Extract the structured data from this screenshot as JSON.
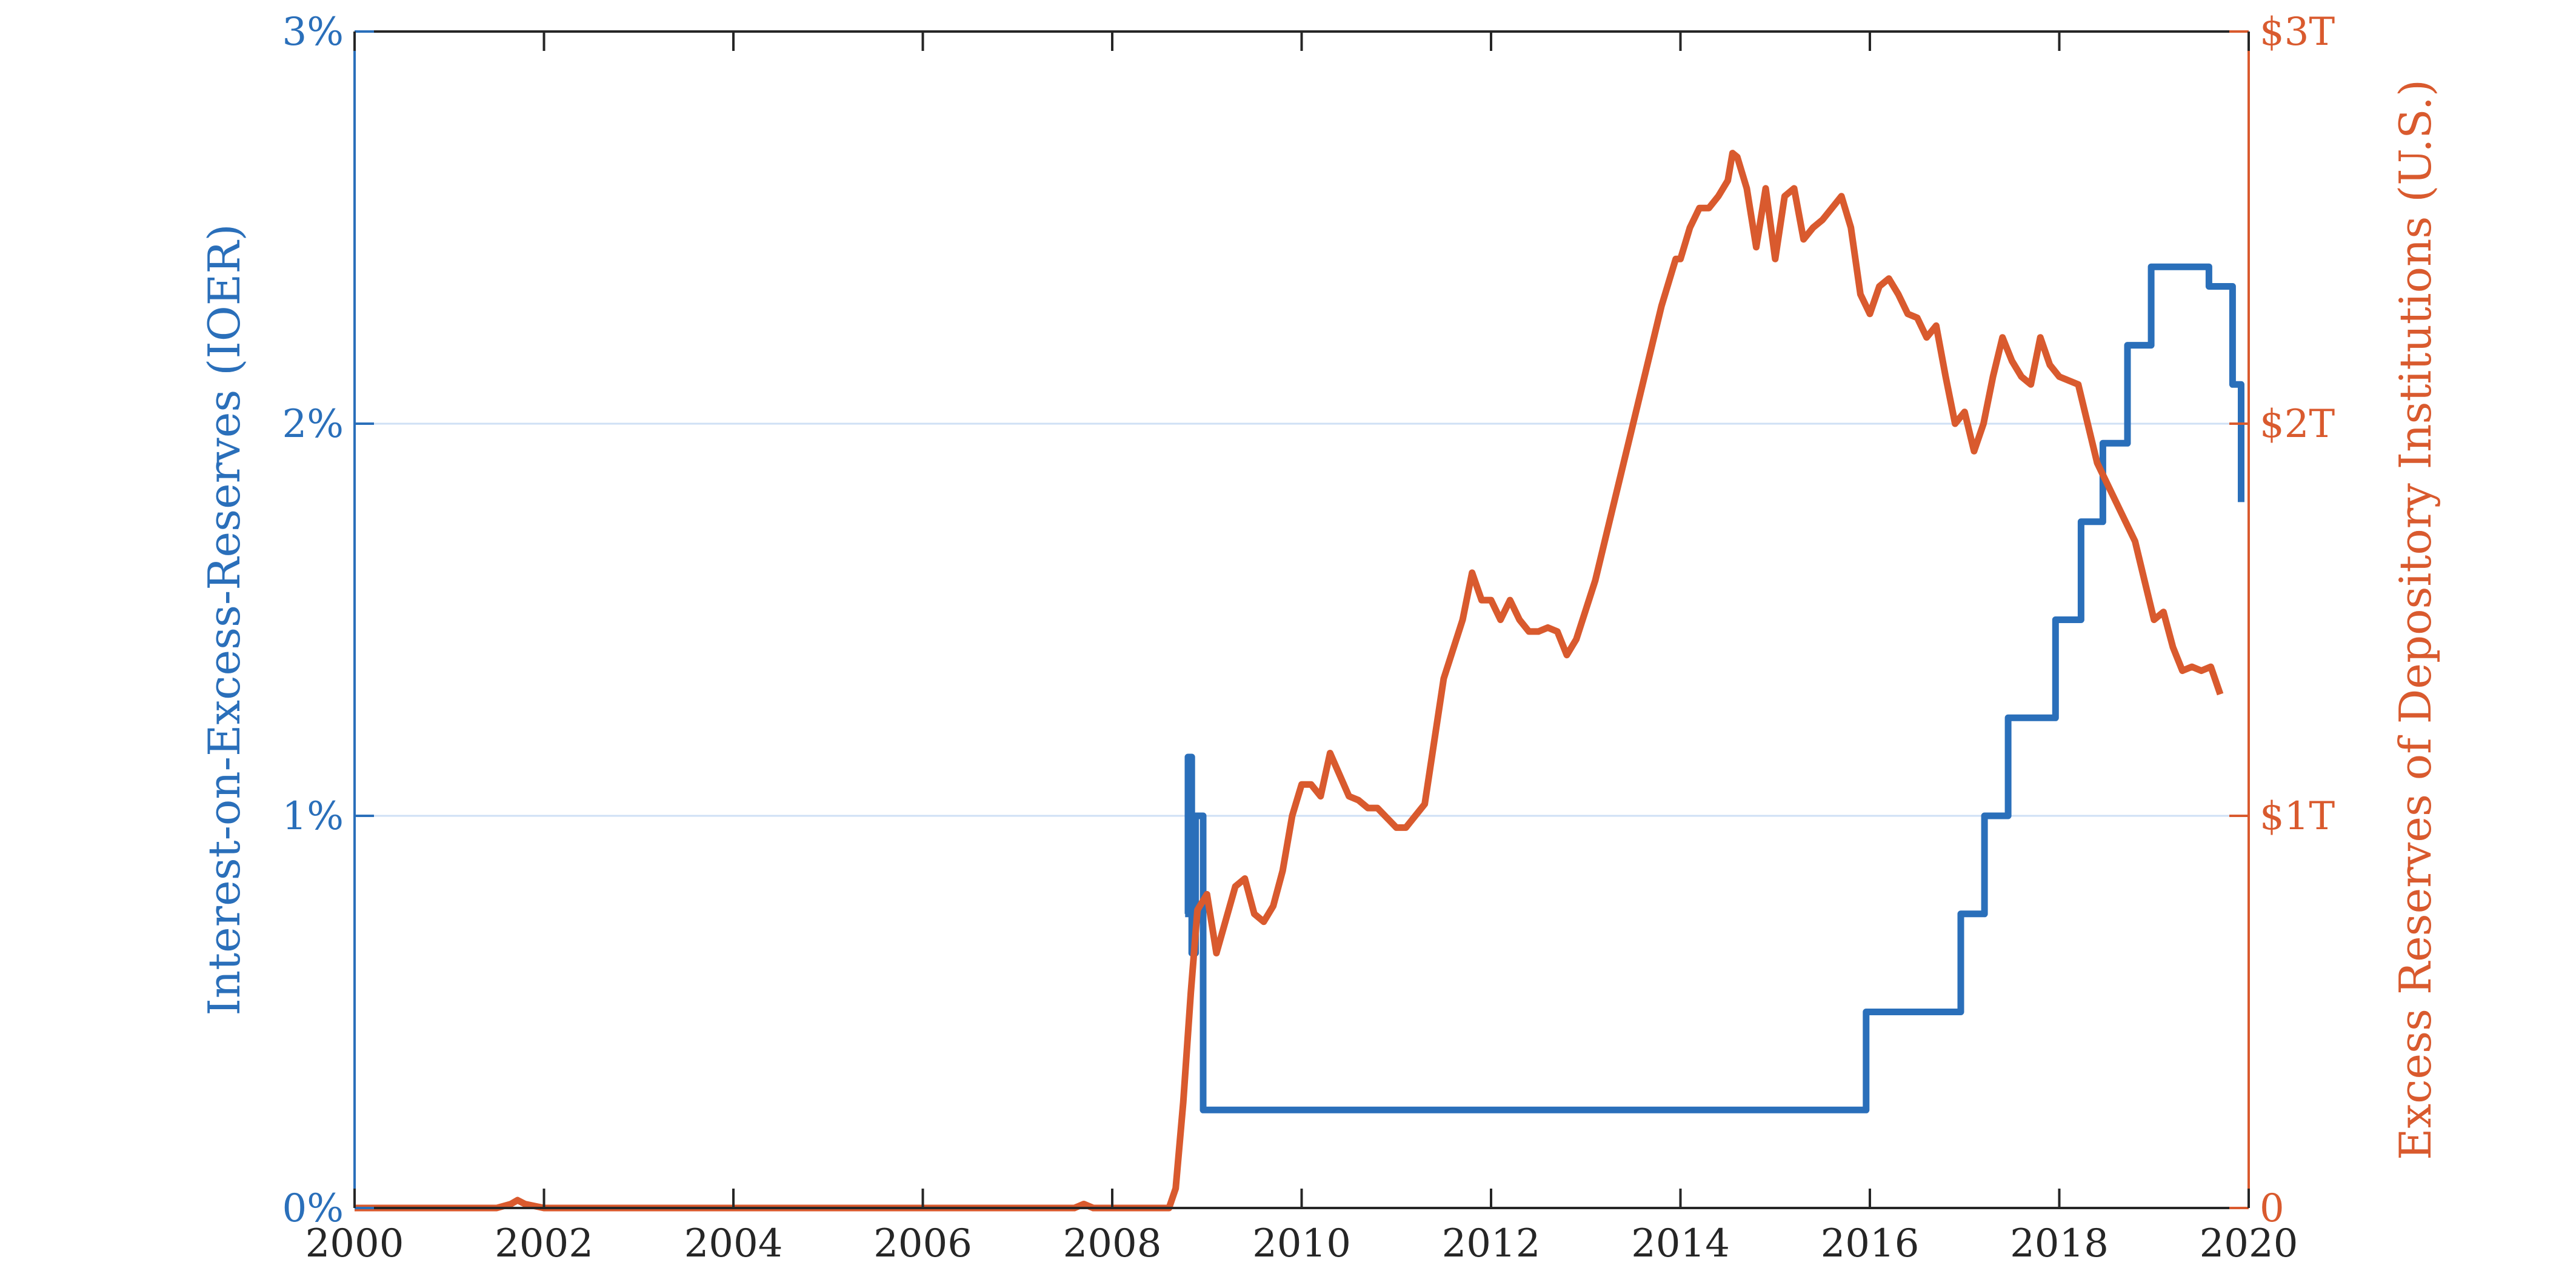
{
  "chart_data": {
    "type": "line",
    "xlabel": "",
    "x_ticks": [
      "2000",
      "2002",
      "2004",
      "2006",
      "2008",
      "2010",
      "2012",
      "2014",
      "2016",
      "2018",
      "2020"
    ],
    "xlim": [
      2000,
      2020
    ],
    "grid": "horizontal",
    "y_left": {
      "label": "Interest-on-Excess-Reserves (IOER)",
      "lim": [
        0,
        3
      ],
      "ticks": [
        "0%",
        "1%",
        "2%",
        "3%"
      ],
      "color": "#2a6fba"
    },
    "y_right": {
      "label": "Excess Reserves of Depository Institutions (U.S.)",
      "lim": [
        0,
        3
      ],
      "ticks": [
        "0",
        "$1T",
        "$2T",
        "$3T"
      ],
      "color": "#d95a2e"
    },
    "series": [
      {
        "key": "ioer",
        "axis": "left",
        "color": "#2a6fba",
        "step": true,
        "x": [
          2008.77,
          2008.8,
          2008.84,
          2008.88,
          2008.96,
          2009.0,
          2015.96,
          2016.96,
          2017.21,
          2017.46,
          2017.96,
          2018.23,
          2018.46,
          2018.72,
          2018.97,
          2019.58,
          2019.83
        ],
        "values": [
          0.75,
          1.15,
          0.65,
          1.0,
          0.25,
          0.25,
          0.5,
          0.75,
          1.0,
          1.25,
          1.5,
          1.75,
          1.95,
          2.2,
          2.4,
          2.35,
          2.1
        ],
        "x_end": 2019.92,
        "end_value": 1.8
      },
      {
        "key": "reserves",
        "axis": "right",
        "color": "#d95a2e",
        "step": false,
        "x": [
          2000.0,
          2001.0,
          2001.5,
          2001.65,
          2001.72,
          2001.8,
          2002.0,
          2004.0,
          2006.0,
          2007.6,
          2007.7,
          2007.8,
          2008.0,
          2008.6,
          2008.67,
          2008.75,
          2008.83,
          2008.9,
          2009.0,
          2009.1,
          2009.3,
          2009.4,
          2009.5,
          2009.6,
          2009.7,
          2009.8,
          2009.9,
          2010.0,
          2010.1,
          2010.2,
          2010.3,
          2010.5,
          2010.6,
          2010.7,
          2010.8,
          2011.0,
          2011.1,
          2011.3,
          2011.5,
          2011.7,
          2011.8,
          2011.9,
          2012.0,
          2012.1,
          2012.2,
          2012.3,
          2012.4,
          2012.5,
          2012.6,
          2012.7,
          2012.8,
          2012.9,
          2013.1,
          2013.3,
          2013.5,
          2013.8,
          2013.95,
          2014.0,
          2014.1,
          2014.2,
          2014.3,
          2014.4,
          2014.5,
          2014.55,
          2014.6,
          2014.7,
          2014.8,
          2014.9,
          2015.0,
          2015.1,
          2015.2,
          2015.3,
          2015.4,
          2015.5,
          2015.6,
          2015.7,
          2015.8,
          2015.9,
          2016.0,
          2016.1,
          2016.2,
          2016.3,
          2016.4,
          2016.5,
          2016.6,
          2016.7,
          2016.8,
          2016.9,
          2017.0,
          2017.1,
          2017.2,
          2017.3,
          2017.4,
          2017.5,
          2017.6,
          2017.7,
          2017.8,
          2017.9,
          2018.0,
          2018.2,
          2018.4,
          2018.6,
          2018.8,
          2018.9,
          2019.0,
          2019.1,
          2019.2,
          2019.3,
          2019.4,
          2019.5,
          2019.6,
          2019.7
        ],
        "values": [
          0.0,
          0.0,
          0.0,
          0.01,
          0.02,
          0.01,
          0.0,
          0.0,
          0.0,
          0.0,
          0.01,
          0.0,
          0.0,
          0.0,
          0.05,
          0.27,
          0.55,
          0.76,
          0.8,
          0.65,
          0.82,
          0.84,
          0.75,
          0.73,
          0.77,
          0.86,
          1.0,
          1.08,
          1.08,
          1.05,
          1.16,
          1.05,
          1.04,
          1.02,
          1.02,
          0.97,
          0.97,
          1.03,
          1.35,
          1.5,
          1.62,
          1.55,
          1.55,
          1.5,
          1.55,
          1.5,
          1.47,
          1.47,
          1.48,
          1.47,
          1.41,
          1.45,
          1.6,
          1.8,
          2.0,
          2.3,
          2.42,
          2.42,
          2.5,
          2.55,
          2.55,
          2.58,
          2.62,
          2.69,
          2.68,
          2.6,
          2.45,
          2.6,
          2.42,
          2.58,
          2.6,
          2.47,
          2.5,
          2.52,
          2.55,
          2.58,
          2.5,
          2.33,
          2.28,
          2.35,
          2.37,
          2.33,
          2.28,
          2.27,
          2.22,
          2.25,
          2.12,
          2.0,
          2.03,
          1.93,
          2.0,
          2.12,
          2.22,
          2.16,
          2.12,
          2.1,
          2.22,
          2.15,
          2.12,
          2.1,
          1.9,
          1.8,
          1.7,
          1.6,
          1.5,
          1.52,
          1.43,
          1.37,
          1.38,
          1.37,
          1.38,
          1.31
        ]
      }
    ]
  }
}
